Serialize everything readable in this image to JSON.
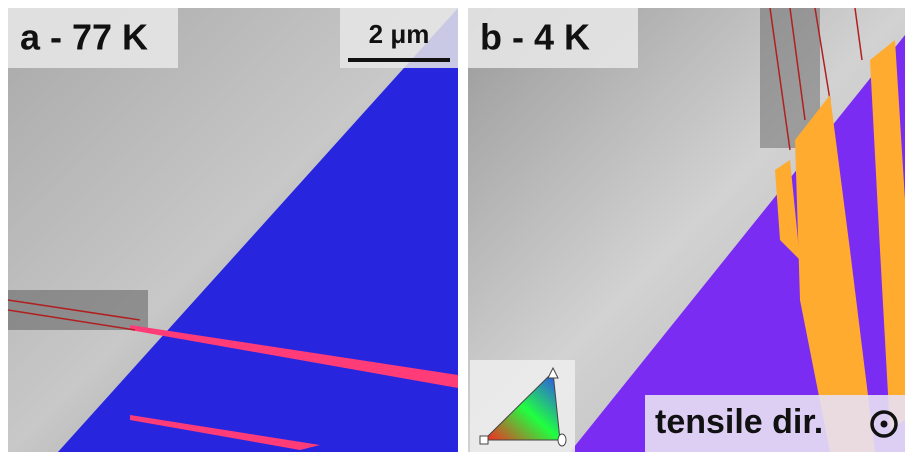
{
  "panels": [
    {
      "label": "a - 77 K",
      "scale_bar": "2 μm"
    },
    {
      "label": "b - 4 K",
      "annotation": "tensile dir."
    }
  ]
}
